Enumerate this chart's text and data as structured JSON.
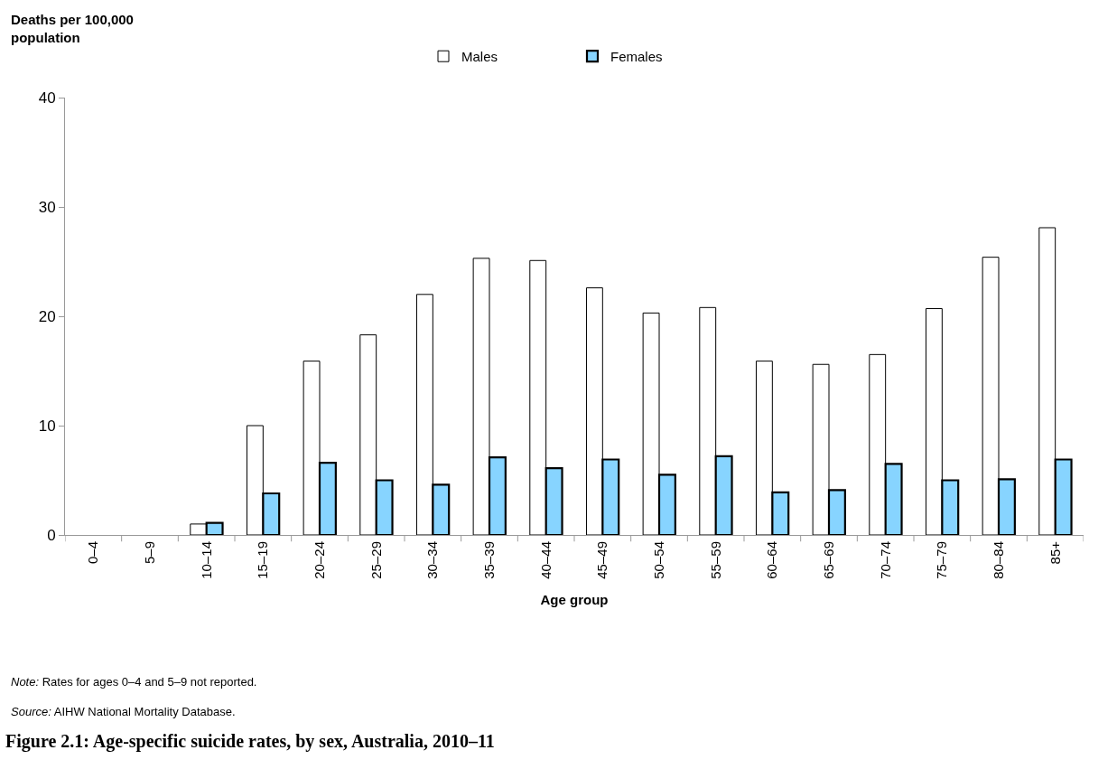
{
  "chart_data": {
    "type": "bar",
    "title": "Figure 2.1: Age-specific suicide rates, by sex, Australia, 2010–11",
    "ylabel": "Deaths per 100,000 population",
    "xlabel": "Age group",
    "annotations": [
      "Note: Rates for ages 0–4 and 5–9 not reported.",
      "Source: AIHW National Mortality Database."
    ],
    "categories": [
      "0–4",
      "5–9",
      "10–14",
      "15–19",
      "20–24",
      "25–29",
      "30–34",
      "35–39",
      "40–44",
      "45–49",
      "50–54",
      "55–59",
      "60–64",
      "65–69",
      "70–74",
      "75–79",
      "80–84",
      "85+"
    ],
    "series": [
      {
        "name": "Males",
        "color": "#ffffff",
        "values": [
          null,
          null,
          1.0,
          10.0,
          15.9,
          18.3,
          22.0,
          25.3,
          25.1,
          22.6,
          20.3,
          20.8,
          15.9,
          15.6,
          16.5,
          20.7,
          25.4,
          28.1
        ]
      },
      {
        "name": "Females",
        "color": "#87d4ff",
        "values": [
          null,
          null,
          1.1,
          3.8,
          6.6,
          5.0,
          4.6,
          7.1,
          6.1,
          6.9,
          5.5,
          7.2,
          3.9,
          4.1,
          6.5,
          5.0,
          5.1,
          6.9
        ]
      }
    ],
    "ylim": [
      0,
      40
    ],
    "yticks": [
      0,
      10,
      20,
      30,
      40
    ],
    "legend": "top"
  }
}
